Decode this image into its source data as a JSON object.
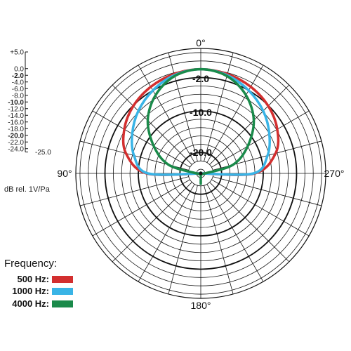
{
  "chart_data": {
    "type": "polar",
    "units": "dB rel. 1V/Pa",
    "angle_labels": [
      "0°",
      "90°",
      "180°",
      "270°"
    ],
    "scale_ticks": [
      "+5.0",
      "0.0",
      "-2.0",
      "-4.0",
      "-6.0",
      "-8.0",
      "-10.0",
      "-12.0",
      "-14.0",
      "-16.0",
      "-18.0",
      "-20.0",
      "-22.0",
      "-24.0",
      "-25.0"
    ],
    "bold_ticks": [
      "-2.0",
      "-10.0",
      "-20.0"
    ],
    "ring_labels": [
      "-2.0",
      "-10.0",
      "-20.0"
    ],
    "r_range": [
      -25,
      5
    ],
    "angular_grid_step_deg": 15,
    "legend_title": "Frequency:",
    "series": [
      {
        "name": "500 Hz:",
        "color": "#d32f2f",
        "angles": [
          0,
          15,
          30,
          45,
          60,
          75,
          90,
          105,
          120,
          135,
          150,
          165,
          180,
          195,
          210,
          225,
          240,
          255,
          270,
          285,
          300,
          315,
          330,
          345
        ],
        "values": [
          0.0,
          -0.3,
          -1.0,
          -2.1,
          -3.8,
          -6.4,
          -12.0,
          -25.0,
          -25.0,
          -25.0,
          -25.0,
          -25.0,
          -25.0,
          -25.0,
          -25.0,
          -25.0,
          -25.0,
          -25.0,
          -12.0,
          -6.4,
          -3.8,
          -2.1,
          -1.0,
          -0.3
        ]
      },
      {
        "name": "1000 Hz:",
        "color": "#39b4e6",
        "angles": [
          0,
          15,
          30,
          45,
          60,
          75,
          90,
          105,
          120,
          135,
          150,
          165,
          180,
          195,
          210,
          225,
          240,
          255,
          270,
          285,
          300,
          315,
          330,
          345
        ],
        "values": [
          0.0,
          -0.6,
          -2.0,
          -3.8,
          -6.0,
          -8.4,
          -12.3,
          -25.0,
          -25.0,
          -25.0,
          -25.0,
          -25.0,
          -25.0,
          -25.0,
          -25.0,
          -25.0,
          -25.0,
          -25.0,
          -12.3,
          -8.4,
          -6.0,
          -3.8,
          -2.0,
          -0.6
        ]
      },
      {
        "name": "4000 Hz:",
        "color": "#1a8a4a",
        "angles": [
          0,
          15,
          30,
          45,
          60,
          75,
          90,
          105,
          120,
          135,
          150,
          165,
          180,
          195,
          210,
          225,
          240,
          255,
          270,
          285,
          300,
          315,
          330,
          345
        ],
        "values": [
          0.0,
          -0.8,
          -3.3,
          -7.0,
          -12.0,
          -17.0,
          -24.0,
          -25.0,
          -25.0,
          -25.0,
          -25.0,
          -25.0,
          -22.5,
          -25.0,
          -25.0,
          -25.0,
          -25.0,
          -25.0,
          -24.0,
          -17.0,
          -12.0,
          -7.0,
          -3.3,
          -0.8
        ]
      }
    ]
  }
}
